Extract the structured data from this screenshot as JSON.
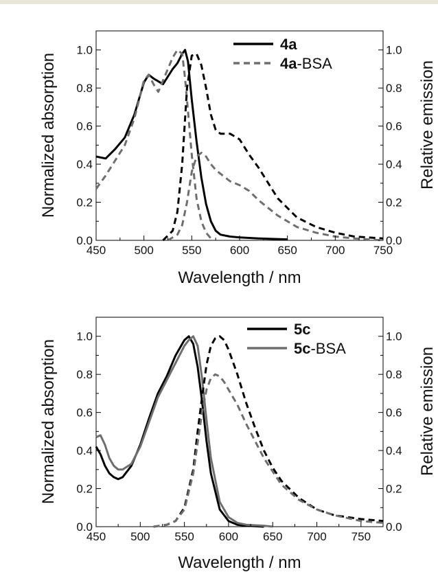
{
  "colors": {
    "band": "#e9e6d9",
    "black": "#000000",
    "gray": "#6e6e6e"
  },
  "chart_data": [
    {
      "type": "line",
      "xlabel": "Wavelength / nm",
      "ylabel": "Normalized absorption",
      "y2label": "Relative emission",
      "xlim": [
        450,
        750
      ],
      "ylim": [
        0,
        1.1
      ],
      "y2lim": [
        0,
        1.1
      ],
      "xticks": [
        "450",
        "500",
        "550",
        "600",
        "650",
        "700",
        "750"
      ],
      "yticks": [
        "0.0",
        "0.2",
        "0.4",
        "0.6",
        "0.8",
        "1.0"
      ],
      "y2ticks": [
        "0.0",
        "0.2",
        "0.4",
        "0.6",
        "0.8",
        "1.0"
      ],
      "legend_position": "top-right",
      "legend": [
        {
          "bold": "4a",
          "rest": "",
          "color": "black",
          "dashed": false
        },
        {
          "bold": "4a",
          "rest": "-BSA",
          "color": "gray",
          "dashed": true
        }
      ],
      "series": [
        {
          "name": "4a",
          "kind": "absorption",
          "color": "black",
          "dashed": false,
          "x": [
            450,
            460,
            470,
            480,
            490,
            500,
            505,
            510,
            520,
            530,
            535,
            540,
            543,
            546,
            550,
            555,
            560,
            565,
            570,
            575,
            580,
            590,
            600,
            620,
            650
          ],
          "y": [
            0.44,
            0.43,
            0.48,
            0.54,
            0.66,
            0.83,
            0.87,
            0.85,
            0.82,
            0.9,
            0.93,
            0.98,
            1.0,
            0.94,
            0.74,
            0.52,
            0.33,
            0.19,
            0.1,
            0.05,
            0.03,
            0.02,
            0.015,
            0.01,
            0.005
          ]
        },
        {
          "name": "4a-BSA",
          "kind": "absorption",
          "color": "gray",
          "dashed": true,
          "x": [
            450,
            460,
            470,
            480,
            490,
            500,
            505,
            510,
            515,
            520,
            525,
            530,
            535,
            540,
            543,
            546,
            550,
            555,
            560,
            565,
            570
          ],
          "y": [
            0.27,
            0.34,
            0.42,
            0.5,
            0.64,
            0.84,
            0.87,
            0.82,
            0.78,
            0.84,
            0.9,
            0.96,
            1.0,
            0.98,
            0.85,
            0.68,
            0.45,
            0.22,
            0.1,
            0.04,
            0.01
          ]
        },
        {
          "name": "4a",
          "kind": "emission",
          "color": "black",
          "dashed": true,
          "x": [
            520,
            530,
            535,
            540,
            545,
            550,
            555,
            560,
            565,
            570,
            575,
            580,
            590,
            600,
            610,
            620,
            630,
            640,
            660,
            680,
            700,
            720,
            750
          ],
          "y": [
            0.0,
            0.05,
            0.15,
            0.4,
            0.8,
            0.97,
            0.98,
            0.92,
            0.8,
            0.66,
            0.58,
            0.56,
            0.56,
            0.53,
            0.45,
            0.38,
            0.3,
            0.22,
            0.12,
            0.07,
            0.04,
            0.02,
            0.01
          ]
        },
        {
          "name": "4a-BSA",
          "kind": "emission",
          "color": "gray",
          "dashed": true,
          "x": [
            525,
            535,
            540,
            545,
            550,
            555,
            560,
            565,
            570,
            575,
            580,
            590,
            600,
            610,
            620,
            630,
            640,
            660,
            680,
            700,
            720,
            750
          ],
          "y": [
            0.0,
            0.03,
            0.08,
            0.2,
            0.36,
            0.44,
            0.46,
            0.44,
            0.4,
            0.37,
            0.35,
            0.31,
            0.29,
            0.26,
            0.21,
            0.17,
            0.13,
            0.07,
            0.04,
            0.02,
            0.01,
            0.0
          ]
        }
      ]
    },
    {
      "type": "line",
      "xlabel": "Wavelength / nm",
      "ylabel": "Normalized absorption",
      "y2label": "Relative emission",
      "xlim": [
        450,
        775
      ],
      "ylim": [
        0,
        1.1
      ],
      "y2lim": [
        0,
        1.1
      ],
      "xticks": [
        "450",
        "500",
        "550",
        "600",
        "650",
        "700",
        "750"
      ],
      "yticks": [
        "0.0",
        "0.2",
        "0.4",
        "0.6",
        "0.8",
        "1.0"
      ],
      "y2ticks": [
        "0.0",
        "0.2",
        "0.4",
        "0.6",
        "0.8",
        "1.0"
      ],
      "legend_position": "top-right",
      "legend": [
        {
          "bold": "5c",
          "rest": "",
          "color": "black",
          "dashed": false
        },
        {
          "bold": "5c",
          "rest": "-BSA",
          "color": "gray",
          "dashed": false
        }
      ],
      "series": [
        {
          "name": "5c",
          "kind": "absorption",
          "color": "black",
          "dashed": false,
          "x": [
            450,
            455,
            460,
            465,
            470,
            475,
            480,
            490,
            500,
            510,
            520,
            530,
            540,
            550,
            555,
            560,
            565,
            570,
            575,
            580,
            590,
            600,
            610,
            620,
            640
          ],
          "y": [
            0.42,
            0.38,
            0.32,
            0.28,
            0.26,
            0.25,
            0.26,
            0.32,
            0.43,
            0.57,
            0.7,
            0.79,
            0.9,
            0.98,
            1.0,
            0.96,
            0.84,
            0.66,
            0.45,
            0.28,
            0.09,
            0.03,
            0.01,
            0.005,
            0.0
          ]
        },
        {
          "name": "5c-BSA",
          "kind": "absorption",
          "color": "gray",
          "dashed": false,
          "x": [
            450,
            455,
            460,
            465,
            470,
            475,
            480,
            490,
            500,
            510,
            520,
            530,
            540,
            550,
            555,
            560,
            565,
            570,
            575,
            580,
            590,
            600,
            610,
            620,
            640,
            650
          ],
          "y": [
            0.47,
            0.48,
            0.43,
            0.36,
            0.32,
            0.3,
            0.3,
            0.33,
            0.42,
            0.55,
            0.68,
            0.77,
            0.86,
            0.95,
            0.98,
            1.0,
            0.95,
            0.78,
            0.56,
            0.36,
            0.13,
            0.05,
            0.02,
            0.01,
            0.005,
            0.0
          ]
        },
        {
          "name": "5c",
          "kind": "emission",
          "color": "black",
          "dashed": true,
          "x": [
            515,
            530,
            540,
            550,
            560,
            565,
            570,
            575,
            580,
            585,
            590,
            595,
            600,
            610,
            620,
            630,
            640,
            650,
            660,
            680,
            700,
            720,
            750,
            775
          ],
          "y": [
            0.0,
            0.01,
            0.03,
            0.1,
            0.3,
            0.5,
            0.68,
            0.85,
            0.95,
            0.99,
            1.0,
            0.98,
            0.93,
            0.8,
            0.65,
            0.52,
            0.4,
            0.31,
            0.24,
            0.15,
            0.09,
            0.06,
            0.04,
            0.03
          ]
        },
        {
          "name": "5c-BSA",
          "kind": "emission",
          "color": "gray",
          "dashed": true,
          "x": [
            515,
            530,
            540,
            550,
            560,
            565,
            570,
            575,
            580,
            585,
            590,
            595,
            600,
            610,
            620,
            630,
            640,
            650,
            660,
            680,
            700,
            720,
            750,
            775
          ],
          "y": [
            0.0,
            0.01,
            0.03,
            0.09,
            0.28,
            0.44,
            0.6,
            0.72,
            0.78,
            0.8,
            0.79,
            0.76,
            0.72,
            0.64,
            0.54,
            0.45,
            0.36,
            0.29,
            0.22,
            0.14,
            0.09,
            0.06,
            0.03,
            0.02
          ]
        }
      ]
    }
  ]
}
